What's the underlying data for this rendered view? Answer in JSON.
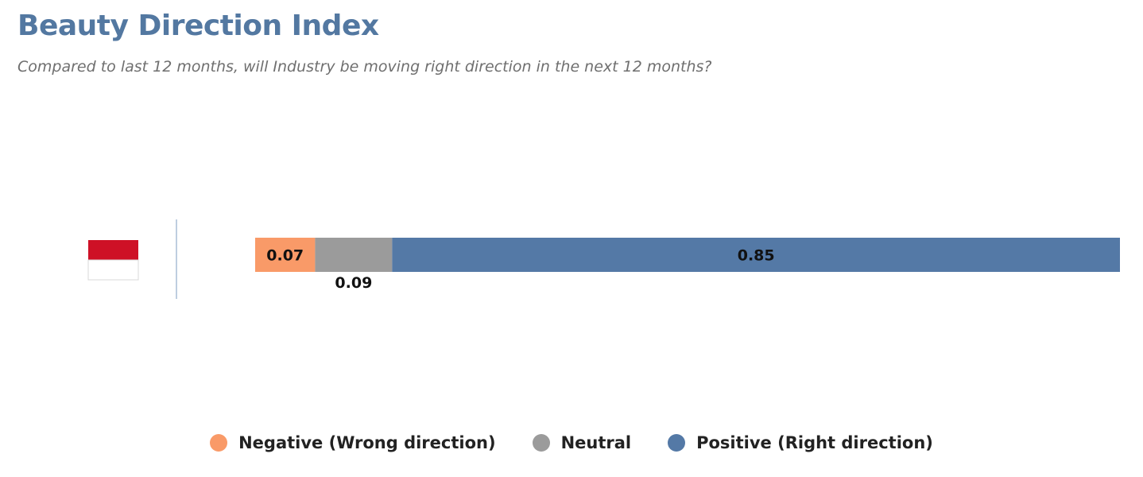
{
  "title": "Beauty Direction Index",
  "subtitle": "Compared to last 12 months, will Industry be moving right direction in the next 12 months?",
  "colors": {
    "negative": "#f99a68",
    "neutral": "#9b9b9b",
    "positive": "#5479a6",
    "flag_red": "#ce1126",
    "flag_white": "#ffffff",
    "axis": "#a9bdd6"
  },
  "chart_data": {
    "type": "bar",
    "orientation": "horizontal",
    "stacked": true,
    "categories": [
      "Indonesia"
    ],
    "category_label_icon": "indonesia-flag",
    "series": [
      {
        "name": "Negative (Wrong direction)",
        "key": "negative",
        "values": [
          0.07
        ],
        "labels": [
          "0.07"
        ]
      },
      {
        "name": "Neutral",
        "key": "neutral",
        "values": [
          0.09
        ],
        "labels": [
          "0.09"
        ]
      },
      {
        "name": "Positive (Right direction)",
        "key": "positive",
        "values": [
          0.85
        ],
        "labels": [
          "0.85"
        ]
      }
    ],
    "legend_position": "bottom",
    "grid": false
  }
}
